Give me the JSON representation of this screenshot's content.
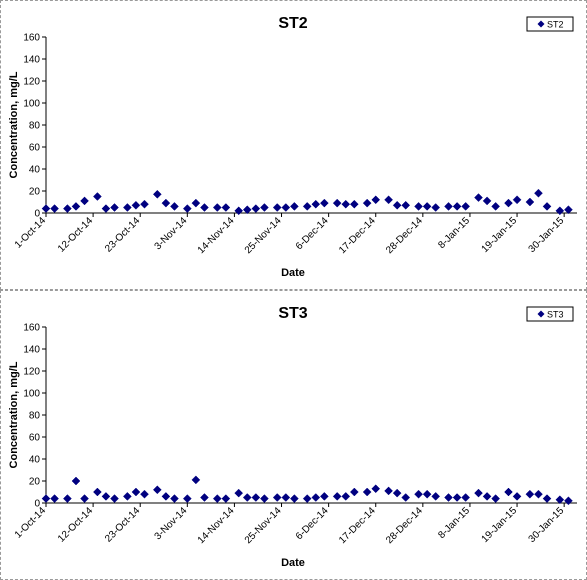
{
  "chart_data": [
    {
      "type": "scatter",
      "title": "ST2",
      "xlabel": "Date",
      "ylabel": "Concentration, mg/L",
      "ylim": [
        0,
        160
      ],
      "yticks": [
        0,
        20,
        40,
        60,
        80,
        100,
        120,
        140,
        160
      ],
      "xlim": [
        "2014-10-01",
        "2015-02-02"
      ],
      "xtick_labels": [
        "1-Oct-14",
        "12-Oct-14",
        "23-Oct-14",
        "3-Nov-14",
        "14-Nov-14",
        "25-Nov-14",
        "6-Dec-14",
        "17-Dec-14",
        "28-Dec-14",
        "8-Jan-15",
        "19-Jan-15",
        "30-Jan-15"
      ],
      "legend": "top-right",
      "grid": false,
      "marker_color": "#000080",
      "series": [
        {
          "name": "ST2",
          "points": [
            [
              "2014-10-01",
              4
            ],
            [
              "2014-10-03",
              4
            ],
            [
              "2014-10-06",
              4
            ],
            [
              "2014-10-08",
              6
            ],
            [
              "2014-10-10",
              11
            ],
            [
              "2014-10-13",
              15
            ],
            [
              "2014-10-15",
              4
            ],
            [
              "2014-10-17",
              5
            ],
            [
              "2014-10-20",
              5
            ],
            [
              "2014-10-22",
              7
            ],
            [
              "2014-10-24",
              8
            ],
            [
              "2014-10-27",
              17
            ],
            [
              "2014-10-29",
              9
            ],
            [
              "2014-10-31",
              6
            ],
            [
              "2014-11-03",
              4
            ],
            [
              "2014-11-05",
              9
            ],
            [
              "2014-11-07",
              5
            ],
            [
              "2014-11-10",
              5
            ],
            [
              "2014-11-12",
              5
            ],
            [
              "2014-11-15",
              2
            ],
            [
              "2014-11-17",
              3
            ],
            [
              "2014-11-19",
              4
            ],
            [
              "2014-11-21",
              5
            ],
            [
              "2014-11-24",
              5
            ],
            [
              "2014-11-26",
              5
            ],
            [
              "2014-11-28",
              6
            ],
            [
              "2014-12-01",
              6
            ],
            [
              "2014-12-03",
              8
            ],
            [
              "2014-12-05",
              9
            ],
            [
              "2014-12-08",
              9
            ],
            [
              "2014-12-10",
              8
            ],
            [
              "2014-12-12",
              8
            ],
            [
              "2014-12-15",
              9
            ],
            [
              "2014-12-17",
              12
            ],
            [
              "2014-12-20",
              12
            ],
            [
              "2014-12-22",
              7
            ],
            [
              "2014-12-24",
              7
            ],
            [
              "2014-12-27",
              6
            ],
            [
              "2014-12-29",
              6
            ],
            [
              "2014-12-31",
              5
            ],
            [
              "2015-01-03",
              6
            ],
            [
              "2015-01-05",
              6
            ],
            [
              "2015-01-07",
              6
            ],
            [
              "2015-01-10",
              14
            ],
            [
              "2015-01-12",
              11
            ],
            [
              "2015-01-14",
              6
            ],
            [
              "2015-01-17",
              9
            ],
            [
              "2015-01-19",
              12
            ],
            [
              "2015-01-22",
              10
            ],
            [
              "2015-01-24",
              18
            ],
            [
              "2015-01-26",
              6
            ],
            [
              "2015-01-29",
              2
            ],
            [
              "2015-01-31",
              3
            ]
          ]
        }
      ]
    },
    {
      "type": "scatter",
      "title": "ST3",
      "xlabel": "Date",
      "ylabel": "Concentration, mg/L",
      "ylim": [
        0,
        160
      ],
      "yticks": [
        0,
        20,
        40,
        60,
        80,
        100,
        120,
        140,
        160
      ],
      "xlim": [
        "2014-10-01",
        "2015-02-02"
      ],
      "xtick_labels": [
        "1-Oct-14",
        "12-Oct-14",
        "23-Oct-14",
        "3-Nov-14",
        "14-Nov-14",
        "25-Nov-14",
        "6-Dec-14",
        "17-Dec-14",
        "28-Dec-14",
        "8-Jan-15",
        "19-Jan-15",
        "30-Jan-15"
      ],
      "legend": "top-right",
      "grid": false,
      "marker_color": "#000080",
      "series": [
        {
          "name": "ST3",
          "points": [
            [
              "2014-10-01",
              4
            ],
            [
              "2014-10-03",
              4
            ],
            [
              "2014-10-06",
              4
            ],
            [
              "2014-10-08",
              20
            ],
            [
              "2014-10-10",
              4
            ],
            [
              "2014-10-13",
              10
            ],
            [
              "2014-10-15",
              6
            ],
            [
              "2014-10-17",
              4
            ],
            [
              "2014-10-20",
              6
            ],
            [
              "2014-10-22",
              10
            ],
            [
              "2014-10-24",
              8
            ],
            [
              "2014-10-27",
              12
            ],
            [
              "2014-10-29",
              6
            ],
            [
              "2014-10-31",
              4
            ],
            [
              "2014-11-03",
              4
            ],
            [
              "2014-11-05",
              21
            ],
            [
              "2014-11-07",
              5
            ],
            [
              "2014-11-10",
              4
            ],
            [
              "2014-11-12",
              4
            ],
            [
              "2014-11-15",
              9
            ],
            [
              "2014-11-17",
              5
            ],
            [
              "2014-11-19",
              5
            ],
            [
              "2014-11-21",
              4
            ],
            [
              "2014-11-24",
              5
            ],
            [
              "2014-11-26",
              5
            ],
            [
              "2014-11-28",
              4
            ],
            [
              "2014-12-01",
              4
            ],
            [
              "2014-12-03",
              5
            ],
            [
              "2014-12-05",
              6
            ],
            [
              "2014-12-08",
              6
            ],
            [
              "2014-12-10",
              6
            ],
            [
              "2014-12-12",
              10
            ],
            [
              "2014-12-15",
              10
            ],
            [
              "2014-12-17",
              13
            ],
            [
              "2014-12-20",
              11
            ],
            [
              "2014-12-22",
              9
            ],
            [
              "2014-12-24",
              5
            ],
            [
              "2014-12-27",
              8
            ],
            [
              "2014-12-29",
              8
            ],
            [
              "2014-12-31",
              6
            ],
            [
              "2015-01-03",
              5
            ],
            [
              "2015-01-05",
              5
            ],
            [
              "2015-01-07",
              5
            ],
            [
              "2015-01-10",
              9
            ],
            [
              "2015-01-12",
              6
            ],
            [
              "2015-01-14",
              4
            ],
            [
              "2015-01-17",
              10
            ],
            [
              "2015-01-19",
              6
            ],
            [
              "2015-01-22",
              8
            ],
            [
              "2015-01-24",
              8
            ],
            [
              "2015-01-26",
              4
            ],
            [
              "2015-01-29",
              3
            ],
            [
              "2015-01-31",
              2
            ]
          ]
        }
      ]
    }
  ]
}
